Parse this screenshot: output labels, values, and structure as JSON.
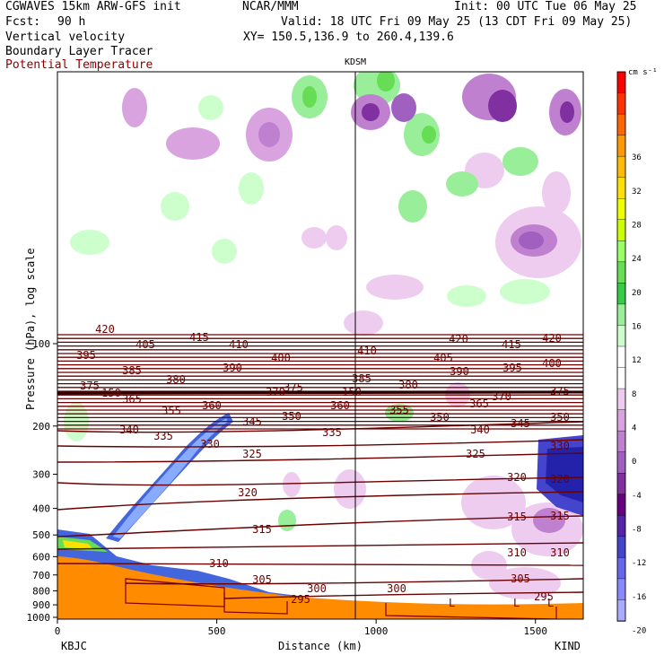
{
  "header": {
    "model": "CGWAVES 15km ARW-GFS init",
    "org": "NCAR/MMM",
    "init": "Init: 00 UTC Tue 06 May 25",
    "fcst_label": "Fcst:",
    "fcst_value": "90 h",
    "valid": "Valid: 18 UTC Fri 09 May 25 (13 CDT Fri 09 May 25)",
    "field1": "Vertical velocity",
    "xy": "XY= 150.5,136.9 to 260.4,139.6",
    "field2": "Boundary Layer Tracer",
    "field3": "Potential Temperature"
  },
  "chart_data": {
    "type": "contour",
    "station_marker": "KDSM",
    "xlabel": "Distance (km)",
    "ylabel": "Pressure (hPa), log scale",
    "x_ticks": [
      0,
      500,
      1000,
      1500
    ],
    "x_range": [
      0,
      1650
    ],
    "x_end_labels": {
      "left": "KBJC",
      "right": "KIND"
    },
    "y_ticks": [
      100,
      200,
      300,
      400,
      500,
      600,
      700,
      800,
      900,
      1000
    ],
    "y_scale": "log",
    "colorbar": {
      "units": "cm s⁻¹",
      "labels": [
        "36",
        "32",
        "28",
        "24",
        "20",
        "16",
        "12",
        "8",
        "4",
        "0",
        "-4",
        "-8",
        "-12",
        "-16",
        "-20"
      ],
      "colors": [
        "#ff0000",
        "#ff3300",
        "#ff6600",
        "#ff9900",
        "#ffbb00",
        "#ffe000",
        "#eeff00",
        "#ccff00",
        "#99ff66",
        "#66dd55",
        "#33cc44",
        "#99ee99",
        "#ccffcc",
        "#ffffff",
        "#ffffff",
        "#eeccf0",
        "#d9a3e0",
        "#c080d0",
        "#a060c0",
        "#8030a0",
        "#660080",
        "#5522aa",
        "#4444cc",
        "#6666ee",
        "#8888ff",
        "#aaaaff"
      ]
    },
    "theta_labels": [
      "420",
      "415",
      "410",
      "405",
      "400",
      "395",
      "390",
      "385",
      "380",
      "375",
      "370",
      "365",
      "360",
      "355",
      "350",
      "345",
      "340",
      "335",
      "330",
      "325",
      "320",
      "315",
      "310",
      "305",
      "300",
      "295",
      "150"
    ],
    "low_marker": "L",
    "vertical_velocity_range": [
      -20,
      36
    ],
    "theta_range": [
      295,
      420
    ]
  }
}
